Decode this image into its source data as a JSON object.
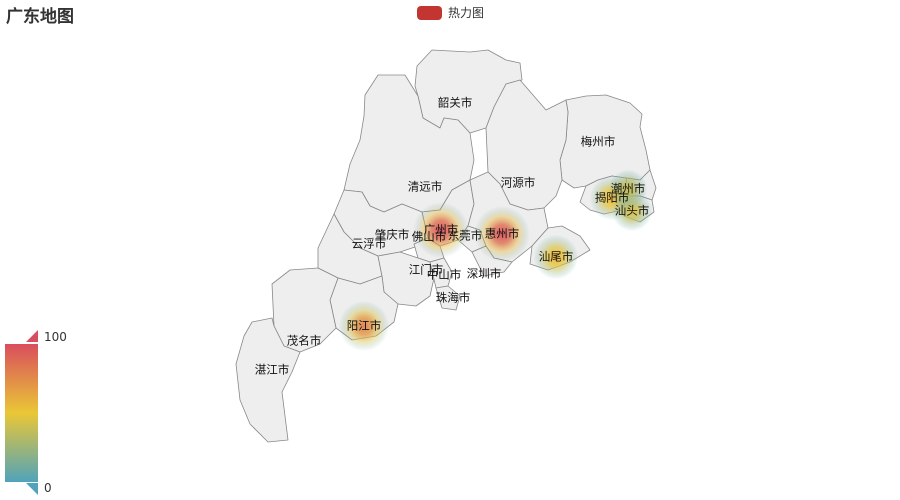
{
  "title": "广东地图",
  "legend": {
    "label": "热力图",
    "color": "#c23531"
  },
  "visual_map": {
    "max_label": "100",
    "min_label": "0",
    "colors": [
      "#d94e5d",
      "#eac736",
      "#50a3ba"
    ]
  },
  "map": {
    "region_fill": "#eeeeee",
    "border_color": "#888888",
    "cities": [
      {
        "name": "韶关市"
      },
      {
        "name": "梅州市"
      },
      {
        "name": "清远市"
      },
      {
        "name": "河源市"
      },
      {
        "name": "潮州市"
      },
      {
        "name": "揭阳市"
      },
      {
        "name": "汕头市"
      },
      {
        "name": "广州市"
      },
      {
        "name": "肇庆市"
      },
      {
        "name": "佛山市"
      },
      {
        "name": "东莞市"
      },
      {
        "name": "惠州市"
      },
      {
        "name": "云浮市"
      },
      {
        "name": "江门市"
      },
      {
        "name": "中山市"
      },
      {
        "name": "深圳市"
      },
      {
        "name": "汕尾市"
      },
      {
        "name": "珠海市"
      },
      {
        "name": "阳江市"
      },
      {
        "name": "茂名市"
      },
      {
        "name": "湛江市"
      }
    ]
  },
  "heat_points": [
    {
      "city": "广州市",
      "value": 100
    },
    {
      "city": "惠州市",
      "value": 100
    },
    {
      "city": "阳江市",
      "value": 80
    },
    {
      "city": "汕尾市",
      "value": 60
    },
    {
      "city": "揭阳市",
      "value": 60
    },
    {
      "city": "汕头市",
      "value": 45
    },
    {
      "city": "潮州市",
      "value": 40
    }
  ]
}
